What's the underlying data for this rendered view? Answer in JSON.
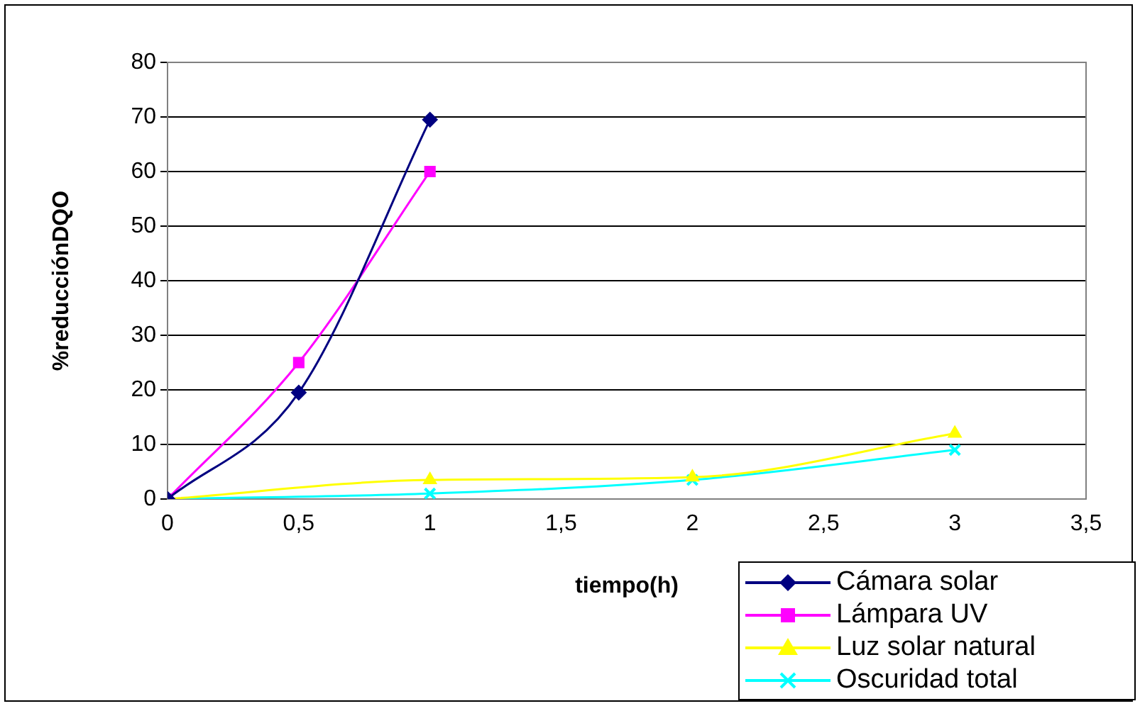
{
  "chart_data": {
    "type": "line",
    "xlabel": "tiempo(h)",
    "ylabel": "%reducciónDQO",
    "xlim": [
      0,
      3.5
    ],
    "xticks": [
      0,
      {
        "value": 0.5,
        "label": "0,5"
      },
      1,
      {
        "value": 1.5,
        "label": "1,5"
      },
      2,
      {
        "value": 2.5,
        "label": "2,5"
      },
      3,
      {
        "value": 3.5,
        "label": "3,5"
      }
    ],
    "ylim": [
      0,
      80
    ],
    "yticks": [
      0,
      10,
      20,
      30,
      40,
      50,
      60,
      70,
      80
    ],
    "grid": "y",
    "legend": "bottom right",
    "series": [
      {
        "name": "Cámara solar",
        "color": "#000080",
        "marker": "diamond",
        "x": [
          0,
          0.5,
          1
        ],
        "values": [
          0,
          19.5,
          69.5
        ]
      },
      {
        "name": "Lámpara UV",
        "color": "#ff00ff",
        "marker": "square",
        "x": [
          0,
          0.5,
          1
        ],
        "values": [
          0,
          25,
          60
        ]
      },
      {
        "name": "Luz solar natural",
        "color": "#ffff00",
        "marker": "triangle",
        "x": [
          0,
          1,
          2,
          3
        ],
        "values": [
          0,
          3.5,
          4,
          12
        ]
      },
      {
        "name": "Oscuridad total",
        "color": "#00ffff",
        "marker": "cross",
        "x": [
          0,
          1,
          2,
          3
        ],
        "values": [
          0,
          1,
          3.5,
          9
        ]
      }
    ]
  }
}
